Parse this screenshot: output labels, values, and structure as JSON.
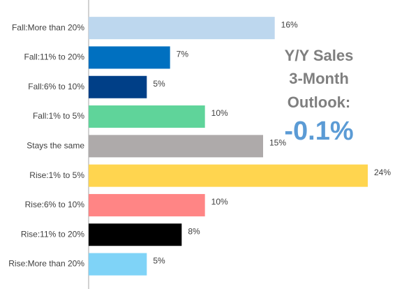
{
  "chart_data": {
    "type": "barh",
    "categories": [
      "Fall:More than 20%",
      "Fall:11% to 20%",
      "Fall:6% to 10%",
      "Fall:1% to 5%",
      "Stays the same",
      "Rise:1% to 5%",
      "Rise:6% to 10%",
      "Rise:11% to 20%",
      "Rise:More than 20%"
    ],
    "values": [
      16,
      7,
      5,
      10,
      15,
      24,
      10,
      8,
      5
    ],
    "value_labels": [
      "16%",
      "7%",
      "5%",
      "10%",
      "15%",
      "24%",
      "10%",
      "8%",
      "5%"
    ],
    "colors": [
      "#bdd7ee",
      "#0070c0",
      "#003f87",
      "#5fd49a",
      "#aeaaaa",
      "#ffd54f",
      "#ff8585",
      "#000000",
      "#7fd3f7"
    ],
    "xlim": [
      0,
      24
    ],
    "annotations": [
      "Y/Y Sales",
      "3-Month",
      "Outlook:",
      "-0.1%"
    ]
  }
}
